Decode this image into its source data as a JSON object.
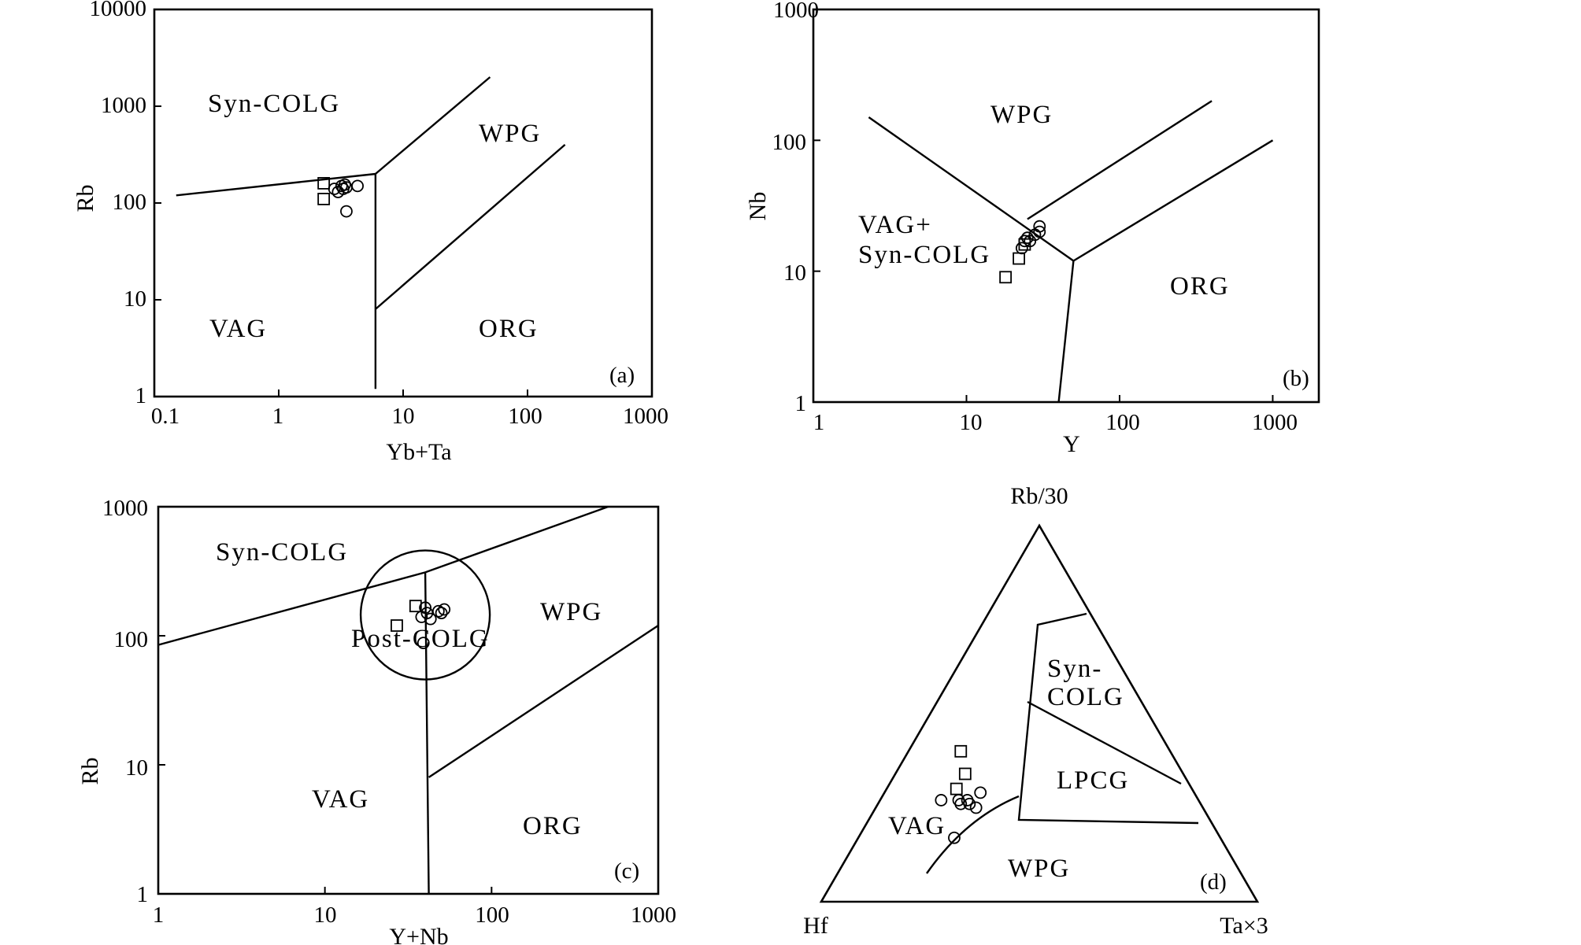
{
  "chart_data": [
    {
      "type": "scatter",
      "id": "a",
      "panel_label": "(a)",
      "xlabel": "Yb+Ta",
      "ylabel": "Rb",
      "xscale": "log",
      "yscale": "log",
      "xlim": [
        0.1,
        1000
      ],
      "ylim": [
        1,
        10000
      ],
      "x_ticks": [
        "0.1",
        "1",
        "10",
        "100",
        "1000"
      ],
      "y_ticks": [
        "1",
        "10",
        "100",
        "1000",
        "10000"
      ],
      "fields": [
        {
          "label": "Syn-COLG",
          "x": 3.5,
          "y": 1000
        },
        {
          "label": "WPG",
          "x": 100,
          "y": 550
        },
        {
          "label": "VAG",
          "x": 1.2,
          "y": 5
        },
        {
          "label": "ORG",
          "x": 80,
          "y": 5
        }
      ],
      "boundaries": [
        [
          [
            0.15,
            120
          ],
          [
            6,
            200
          ],
          [
            6,
            1.2
          ]
        ],
        [
          [
            6,
            200
          ],
          [
            50,
            2000
          ]
        ],
        [
          [
            6,
            8
          ],
          [
            200,
            400
          ]
        ]
      ],
      "series": [
        {
          "marker": "square",
          "points": [
            [
              2.3,
              160
            ],
            [
              2.3,
              110
            ]
          ]
        },
        {
          "marker": "circle",
          "points": [
            [
              2.8,
              140
            ],
            [
              3.0,
              130
            ],
            [
              3.2,
              150
            ],
            [
              3.3,
              140
            ],
            [
              3.4,
              155
            ],
            [
              3.5,
              145
            ],
            [
              4.3,
              150
            ],
            [
              3.5,
              82
            ]
          ]
        }
      ]
    },
    {
      "type": "scatter",
      "id": "b",
      "panel_label": "(b)",
      "xlabel": "Y",
      "ylabel": "Nb",
      "xscale": "log",
      "yscale": "log",
      "xlim": [
        1,
        2000
      ],
      "ylim": [
        1,
        1000
      ],
      "x_ticks": [
        "1",
        "10",
        "100",
        "1000"
      ],
      "y_ticks": [
        "1",
        "10",
        "100",
        "1000"
      ],
      "fields": [
        {
          "label": "WPG",
          "x": 25,
          "y": 120
        },
        {
          "label": "VAG+",
          "x": 6,
          "y": 25
        },
        {
          "label": "Syn-COLG",
          "x": 6,
          "y": 14.5
        },
        {
          "label": "ORG",
          "x": 200,
          "y": 9
        }
      ],
      "boundaries": [
        [
          [
            2.3,
            150
          ],
          [
            50,
            12
          ]
        ],
        [
          [
            50,
            12
          ],
          [
            40,
            1
          ]
        ],
        [
          [
            50,
            12
          ],
          [
            1000,
            100
          ]
        ],
        [
          [
            25,
            25
          ],
          [
            400,
            200
          ]
        ]
      ],
      "series": [
        {
          "marker": "square",
          "points": [
            [
              18,
              9
            ],
            [
              22,
              12.5
            ],
            [
              24,
              16
            ]
          ]
        },
        {
          "marker": "circle",
          "points": [
            [
              23,
              15
            ],
            [
              24,
              17
            ],
            [
              25,
              18
            ],
            [
              26,
              17
            ],
            [
              28,
              19
            ],
            [
              30,
              22
            ],
            [
              30,
              20
            ]
          ]
        }
      ]
    },
    {
      "type": "scatter",
      "id": "c",
      "panel_label": "(c)",
      "xlabel": "Y+Nb",
      "ylabel": "Rb",
      "xscale": "log",
      "yscale": "log",
      "xlim": [
        1,
        1000
      ],
      "ylim": [
        1,
        1000
      ],
      "x_ticks": [
        "1",
        "10",
        "100",
        "1000"
      ],
      "y_ticks": [
        "1",
        "10",
        "100",
        "1000"
      ],
      "fields": [
        {
          "label": "Syn-COLG",
          "x": 3.5,
          "y": 540
        },
        {
          "label": "Post-COLG",
          "x": 40,
          "y": 100
        },
        {
          "label": "WPG",
          "x": 150,
          "y": 170
        },
        {
          "label": "VAG",
          "x": 8,
          "y": 7
        },
        {
          "label": "ORG",
          "x": 140,
          "y": 4.5
        }
      ],
      "boundaries": [
        [
          [
            1,
            85
          ],
          [
            40,
            310
          ],
          [
            500,
            1000
          ]
        ],
        [
          [
            40,
            310
          ],
          [
            42,
            1
          ]
        ],
        [
          [
            42,
            8
          ],
          [
            1000,
            120
          ]
        ]
      ],
      "post_colg_circle": {
        "center": [
          40,
          145
        ],
        "radius_decades": 0.5
      },
      "series": [
        {
          "marker": "square",
          "points": [
            [
              35,
              170
            ],
            [
              27,
              120
            ]
          ]
        },
        {
          "marker": "circle",
          "points": [
            [
              38,
              140
            ],
            [
              40,
              165
            ],
            [
              41,
              150
            ],
            [
              43,
              135
            ],
            [
              48,
              155
            ],
            [
              50,
              150
            ],
            [
              52,
              160
            ],
            [
              39,
              88
            ]
          ]
        }
      ]
    },
    {
      "type": "scatter",
      "id": "d",
      "panel_label": "(d)",
      "ternary": true,
      "apex_labels": {
        "top": "Rb/30",
        "left": "Hf",
        "right": "Ta×3"
      },
      "fields": [
        {
          "label": "Syn-",
          "rb30": 0.48,
          "hf": 0.18,
          "ta3": 0.34
        },
        {
          "label": "COLG",
          "rb30": 0.42,
          "hf": 0.21,
          "ta3": 0.37
        },
        {
          "label": "LPCG",
          "rb30": 0.26,
          "hf": 0.26,
          "ta3": 0.48
        },
        {
          "label": "VAG",
          "rb30": 0.16,
          "hf": 0.76,
          "ta3": 0.08
        },
        {
          "label": "WPG",
          "rb30": 0.06,
          "hf": 0.4,
          "ta3": 0.54
        }
      ],
      "series": [
        {
          "marker": "square",
          "points": [
            [
              0.4,
              0.48,
              0.12
            ],
            [
              0.34,
              0.5,
              0.16
            ],
            [
              0.3,
              0.54,
              0.16
            ]
          ]
        },
        {
          "marker": "circle",
          "points": [
            [
              0.27,
              0.59,
              0.14
            ],
            [
              0.26,
              0.55,
              0.19
            ],
            [
              0.27,
              0.55,
              0.18
            ],
            [
              0.26,
              0.53,
              0.21
            ],
            [
              0.27,
              0.53,
              0.2
            ],
            [
              0.29,
              0.49,
              0.22
            ],
            [
              0.25,
              0.52,
              0.23
            ],
            [
              0.17,
              0.61,
              0.22
            ]
          ]
        }
      ]
    }
  ]
}
